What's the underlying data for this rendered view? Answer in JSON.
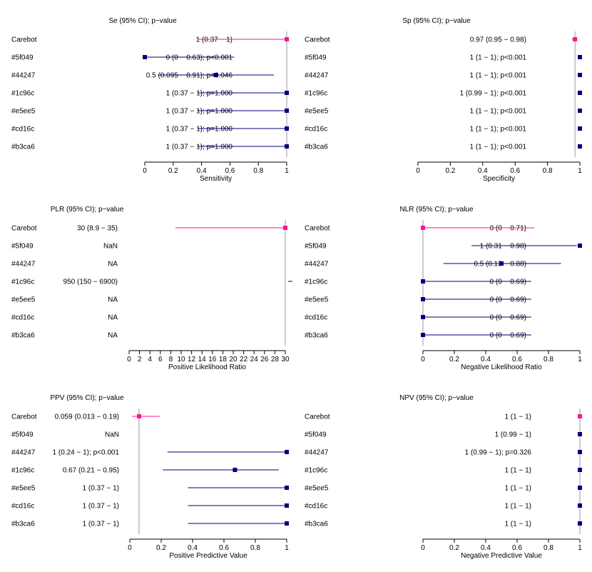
{
  "colors": {
    "highlight": "#ff1493",
    "series": "#00007f",
    "axis": "#000000",
    "refline": "#999999"
  },
  "chart_data": [
    {
      "type": "forest",
      "header": "Se (95% CI); p−value",
      "xlabel": "Sensitivity",
      "xlim": [
        0,
        1
      ],
      "ticks": [
        0,
        0.2,
        0.4,
        0.6,
        0.8,
        1
      ],
      "tick_labels": [
        "0",
        "0.2",
        "0.4",
        "0.6",
        "0.8",
        "1"
      ],
      "refline": 1,
      "rows": [
        {
          "name": "Carebot",
          "text": "1 (0.37 − 1)",
          "est": 1,
          "lo": 0.37,
          "hi": 1,
          "highlight": true
        },
        {
          "name": "#5f049",
          "text": "0 (0 − 0.63); p<0.001",
          "est": 0,
          "lo": 0,
          "hi": 0.63
        },
        {
          "name": "#44247",
          "text": "0.5 (0.095 − 0.91); p=0.046",
          "est": 0.5,
          "lo": 0.095,
          "hi": 0.91
        },
        {
          "name": "#1c96c",
          "text": "1 (0.37 − 1); p=1.000",
          "est": 1,
          "lo": 0.37,
          "hi": 1
        },
        {
          "name": "#e5ee5",
          "text": "1 (0.37 − 1); p=1.000",
          "est": 1,
          "lo": 0.37,
          "hi": 1
        },
        {
          "name": "#cd16c",
          "text": "1 (0.37 − 1); p=1.000",
          "est": 1,
          "lo": 0.37,
          "hi": 1
        },
        {
          "name": "#b3ca6",
          "text": "1 (0.37 − 1); p=1.000",
          "est": 1,
          "lo": 0.37,
          "hi": 1
        }
      ]
    },
    {
      "type": "forest",
      "header": "Sp (95% CI); p−value",
      "xlabel": "Specificity",
      "xlim": [
        0,
        1
      ],
      "ticks": [
        0,
        0.2,
        0.4,
        0.6,
        0.8,
        1
      ],
      "tick_labels": [
        "0",
        "0.2",
        "0.4",
        "0.6",
        "0.8",
        "1"
      ],
      "refline": 0.97,
      "rows": [
        {
          "name": "Carebot",
          "text": "0.97 (0.95 − 0.98)",
          "est": 0.97,
          "lo": 0.95,
          "hi": 0.98,
          "highlight": true
        },
        {
          "name": "#5f049",
          "text": "1 (1 − 1); p<0.001",
          "est": 1,
          "lo": 1,
          "hi": 1
        },
        {
          "name": "#44247",
          "text": "1 (1 − 1); p<0.001",
          "est": 1,
          "lo": 1,
          "hi": 1
        },
        {
          "name": "#1c96c",
          "text": "1 (0.99 − 1); p<0.001",
          "est": 1,
          "lo": 0.99,
          "hi": 1
        },
        {
          "name": "#e5ee5",
          "text": "1 (1 − 1); p<0.001",
          "est": 1,
          "lo": 1,
          "hi": 1
        },
        {
          "name": "#cd16c",
          "text": "1 (1 − 1); p<0.001",
          "est": 1,
          "lo": 1,
          "hi": 1
        },
        {
          "name": "#b3ca6",
          "text": "1 (1 − 1); p<0.001",
          "est": 1,
          "lo": 1,
          "hi": 1
        }
      ]
    },
    {
      "type": "forest",
      "header": "PLR (95% CI); p−value",
      "xlabel": "Positive Likelihood Ratio",
      "xlim": [
        0,
        30
      ],
      "ticks": [
        0,
        2,
        4,
        6,
        8,
        10,
        12,
        14,
        16,
        18,
        20,
        22,
        24,
        26,
        28,
        30
      ],
      "tick_labels": [
        "0",
        "2",
        "4",
        "6",
        "8",
        "10",
        "12",
        "14",
        "16",
        "18",
        "20",
        "22",
        "24",
        "26",
        "28",
        "30"
      ],
      "refline": 30,
      "rows": [
        {
          "name": "Carebot",
          "text": "30 (8.9 − 35)",
          "est": 30,
          "lo": 8.9,
          "hi": 35,
          "highlight": true
        },
        {
          "name": "#5f049",
          "text": "NaN",
          "est": null,
          "lo": null,
          "hi": null
        },
        {
          "name": "#44247",
          "text": "NA",
          "est": null,
          "lo": null,
          "hi": null
        },
        {
          "name": "#1c96c",
          "text": "950 (150 − 6900)",
          "est": 950,
          "lo": 150,
          "hi": 6900
        },
        {
          "name": "#e5ee5",
          "text": "NA",
          "est": null,
          "lo": null,
          "hi": null
        },
        {
          "name": "#cd16c",
          "text": "NA",
          "est": null,
          "lo": null,
          "hi": null
        },
        {
          "name": "#b3ca6",
          "text": "NA",
          "est": null,
          "lo": null,
          "hi": null
        }
      ]
    },
    {
      "type": "forest",
      "header": "NLR (95% CI); p−value",
      "xlabel": "Negative Likelihood Ratio",
      "xlim": [
        0,
        1
      ],
      "ticks": [
        0,
        0.2,
        0.4,
        0.6,
        0.8,
        1
      ],
      "tick_labels": [
        "0",
        "0.2",
        "0.4",
        "0.6",
        "0.8",
        "1"
      ],
      "refline": 0,
      "rows": [
        {
          "name": "Carebot",
          "text": "0 (0 − 0.71)",
          "est": 0,
          "lo": 0,
          "hi": 0.71,
          "highlight": true
        },
        {
          "name": "#5f049",
          "text": "1 (0.31 − 0.98)",
          "est": 1,
          "lo": 0.31,
          "hi": 0.98
        },
        {
          "name": "#44247",
          "text": "0.5 (0.13 − 0.88)",
          "est": 0.5,
          "lo": 0.13,
          "hi": 0.88
        },
        {
          "name": "#1c96c",
          "text": "0 (0 − 0.69)",
          "est": 0,
          "lo": 0,
          "hi": 0.69
        },
        {
          "name": "#e5ee5",
          "text": "0 (0 − 0.69)",
          "est": 0,
          "lo": 0,
          "hi": 0.69
        },
        {
          "name": "#cd16c",
          "text": "0 (0 − 0.69)",
          "est": 0,
          "lo": 0,
          "hi": 0.69
        },
        {
          "name": "#b3ca6",
          "text": "0 (0 − 0.69)",
          "est": 0,
          "lo": 0,
          "hi": 0.69
        }
      ]
    },
    {
      "type": "forest",
      "header": "PPV (95% CI); p−value",
      "xlabel": "Positive Predictive Value",
      "xlim": [
        0,
        1
      ],
      "ticks": [
        0,
        0.2,
        0.4,
        0.6,
        0.8,
        1
      ],
      "tick_labels": [
        "0",
        "0.2",
        "0.4",
        "0.6",
        "0.8",
        "1"
      ],
      "refline": 0.059,
      "rows": [
        {
          "name": "Carebot",
          "text": "0.059 (0.013 − 0.19)",
          "est": 0.059,
          "lo": 0.013,
          "hi": 0.19,
          "highlight": true
        },
        {
          "name": "#5f049",
          "text": "NaN",
          "est": null,
          "lo": null,
          "hi": null
        },
        {
          "name": "#44247",
          "text": "1 (0.24 − 1); p<0.001",
          "est": 1,
          "lo": 0.24,
          "hi": 1
        },
        {
          "name": "#1c96c",
          "text": "0.67 (0.21 − 0.95)",
          "est": 0.67,
          "lo": 0.21,
          "hi": 0.95
        },
        {
          "name": "#e5ee5",
          "text": "1 (0.37 − 1)",
          "est": 1,
          "lo": 0.37,
          "hi": 1
        },
        {
          "name": "#cd16c",
          "text": "1 (0.37 − 1)",
          "est": 1,
          "lo": 0.37,
          "hi": 1
        },
        {
          "name": "#b3ca6",
          "text": "1 (0.37 − 1)",
          "est": 1,
          "lo": 0.37,
          "hi": 1
        }
      ]
    },
    {
      "type": "forest",
      "header": "NPV (95% CI); p−value",
      "xlabel": "Negative Predictive Value",
      "xlim": [
        0,
        1
      ],
      "ticks": [
        0,
        0.2,
        0.4,
        0.6,
        0.8,
        1
      ],
      "tick_labels": [
        "0",
        "0.2",
        "0.4",
        "0.6",
        "0.8",
        "1"
      ],
      "refline": 1,
      "rows": [
        {
          "name": "Carebot",
          "text": "1 (1 − 1)",
          "est": 1,
          "lo": 1,
          "hi": 1,
          "highlight": true
        },
        {
          "name": "#5f049",
          "text": "1 (0.99 − 1)",
          "est": 1,
          "lo": 0.99,
          "hi": 1
        },
        {
          "name": "#44247",
          "text": "1 (0.99 − 1); p=0.326",
          "est": 1,
          "lo": 0.99,
          "hi": 1
        },
        {
          "name": "#1c96c",
          "text": "1 (1 − 1)",
          "est": 1,
          "lo": 1,
          "hi": 1
        },
        {
          "name": "#e5ee5",
          "text": "1 (1 − 1)",
          "est": 1,
          "lo": 1,
          "hi": 1
        },
        {
          "name": "#cd16c",
          "text": "1 (1 − 1)",
          "est": 1,
          "lo": 1,
          "hi": 1
        },
        {
          "name": "#b3ca6",
          "text": "1 (1 − 1)",
          "est": 1,
          "lo": 1,
          "hi": 1
        }
      ]
    }
  ]
}
